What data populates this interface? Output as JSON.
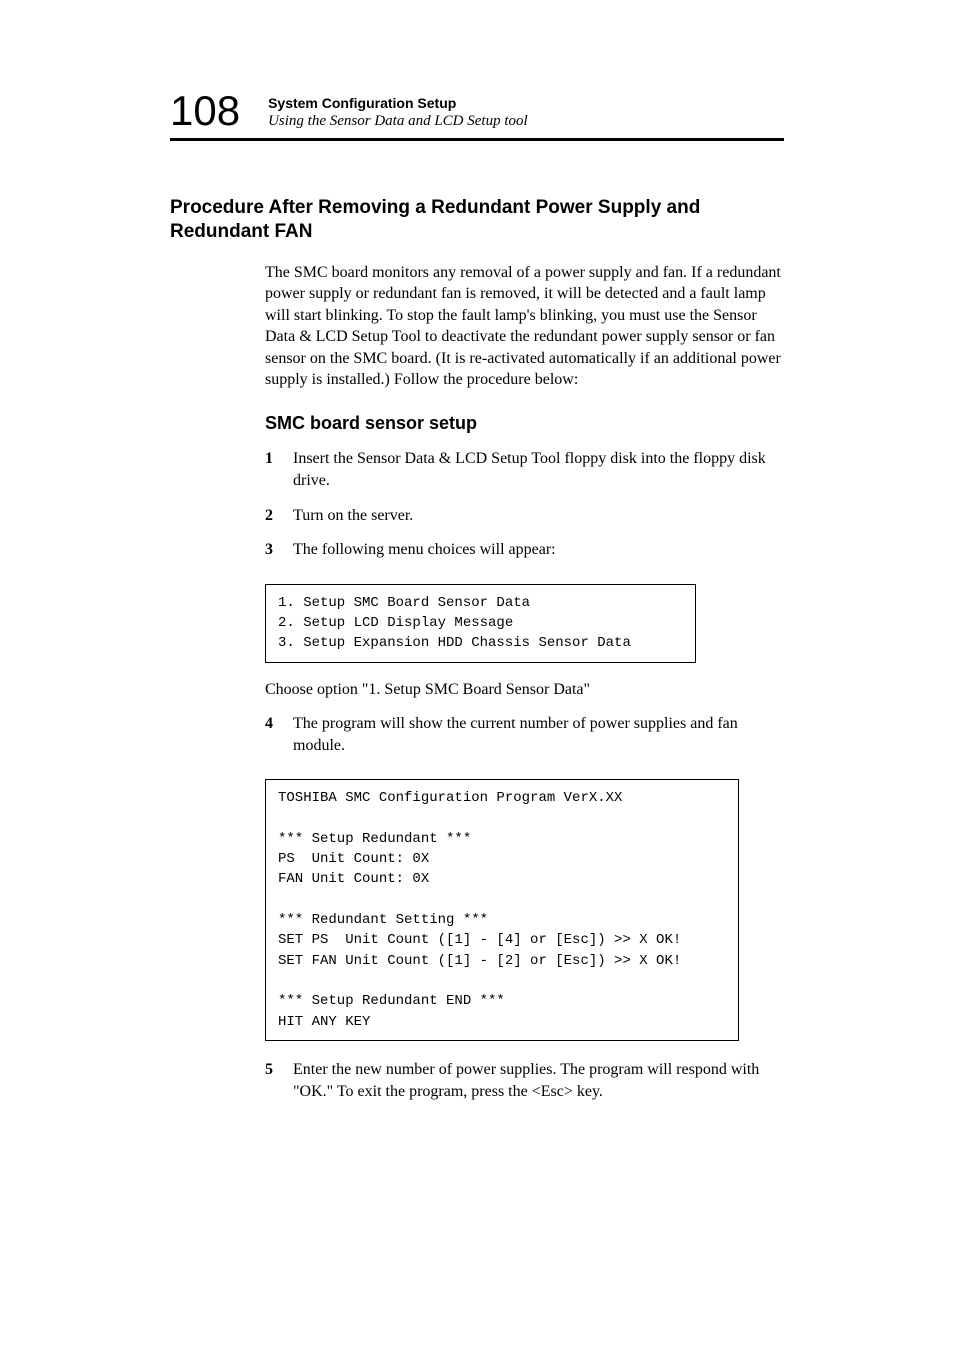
{
  "page_number": "108",
  "header": {
    "bold": "System Configuration Setup",
    "italic": "Using the Sensor Data and LCD Setup tool"
  },
  "section_title": "Procedure After Removing a Redundant Power Supply and Redundant FAN",
  "intro_paragraph": "The SMC board monitors any removal of a power supply and fan. If a redundant power supply or redundant fan is removed, it will be detected and a fault lamp will start blinking. To stop the fault lamp's blinking, you must use the Sensor Data & LCD Setup Tool to deactivate the redundant power supply sensor or fan sensor on the SMC board. (It is re-activated automatically if an additional power supply is installed.) Follow the procedure below:",
  "sub_title": "SMC board sensor setup",
  "steps": {
    "1": "Insert the Sensor Data & LCD Setup Tool floppy disk into the floppy disk drive.",
    "2": "Turn on the server.",
    "3": "The following menu choices will appear:",
    "4": "The program will show the current number of power supplies and fan module.",
    "5": "Enter the new number of power supplies.  The program will respond with \"OK.\" To exit the program, press the <Esc> key."
  },
  "code_box_1": "1. Setup SMC Board Sensor Data\n2. Setup LCD Display Message\n3. Setup Expansion HDD Chassis Sensor Data",
  "choose_text": "Choose option \"1. Setup SMC Board Sensor Data\"",
  "code_box_2": "TOSHIBA SMC Configuration Program VerX.XX\n\n*** Setup Redundant ***\nPS  Unit Count: 0X\nFAN Unit Count: 0X\n\n*** Redundant Setting ***\nSET PS  Unit Count ([1] - [4] or [Esc]) >> X OK!\nSET FAN Unit Count ([1] - [2] or [Esc]) >> X OK!\n\n*** Setup Redundant END ***\nHIT ANY KEY"
}
